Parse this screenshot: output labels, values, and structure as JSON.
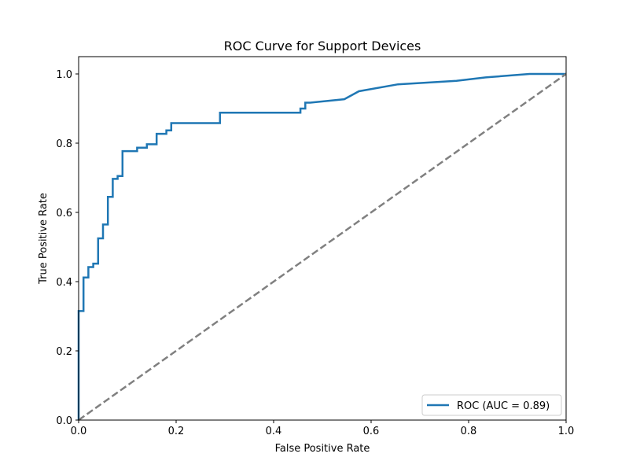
{
  "chart_data": {
    "type": "line",
    "title": "ROC Curve for Support Devices",
    "xlabel": "False Positive Rate",
    "ylabel": "True Positive Rate",
    "xlim": [
      0.0,
      1.0
    ],
    "ylim": [
      0.0,
      1.05
    ],
    "xticks": [
      "0.0",
      "0.2",
      "0.4",
      "0.6",
      "0.8",
      "1.0"
    ],
    "yticks": [
      "0.0",
      "0.2",
      "0.4",
      "0.6",
      "0.8",
      "1.0"
    ],
    "grid": false,
    "legend": {
      "location": "lower-right"
    },
    "series": [
      {
        "name": "ROC (AUC = 0.89)",
        "color": "#1f77b4",
        "style": "solid-step",
        "x": [
          0.0,
          0.0,
          0.01,
          0.01,
          0.02,
          0.02,
          0.03,
          0.03,
          0.04,
          0.04,
          0.05,
          0.05,
          0.06,
          0.06,
          0.07,
          0.07,
          0.08,
          0.08,
          0.09,
          0.09,
          0.12,
          0.12,
          0.14,
          0.14,
          0.16,
          0.16,
          0.18,
          0.18,
          0.19,
          0.19,
          0.29,
          0.29,
          0.455,
          0.455,
          0.465,
          0.465,
          0.475,
          0.475,
          0.545,
          0.545,
          0.575,
          0.575,
          0.655,
          0.655,
          0.775,
          0.775,
          0.835,
          0.835,
          0.925,
          0.925,
          1.0
        ],
        "y": [
          0.0,
          0.315,
          0.315,
          0.412,
          0.412,
          0.442,
          0.442,
          0.452,
          0.452,
          0.525,
          0.525,
          0.565,
          0.565,
          0.645,
          0.645,
          0.697,
          0.697,
          0.705,
          0.705,
          0.777,
          0.777,
          0.787,
          0.787,
          0.797,
          0.797,
          0.827,
          0.827,
          0.837,
          0.837,
          0.858,
          0.858,
          0.888,
          0.888,
          0.9,
          0.9,
          0.917,
          0.917,
          0.917,
          0.927,
          0.927,
          0.95,
          0.95,
          0.97,
          0.97,
          0.98,
          0.98,
          0.99,
          0.99,
          1.0,
          1.0,
          1.0
        ]
      },
      {
        "name": "",
        "color": "#808080",
        "style": "dashed",
        "x": [
          0.0,
          1.0
        ],
        "y": [
          0.0,
          1.0
        ]
      }
    ]
  }
}
